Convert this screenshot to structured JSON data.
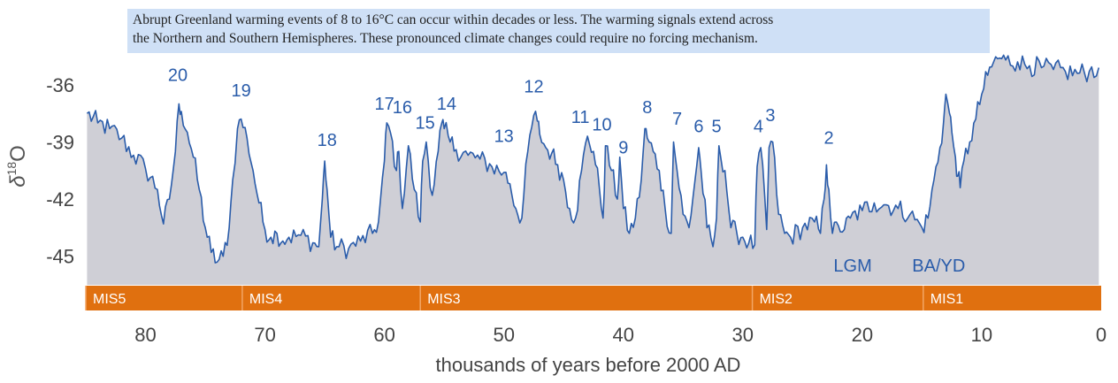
{
  "chart_data": {
    "type": "area",
    "title": "",
    "xlabel": "thousands of years before 2000 AD",
    "ylabel_base": "δ",
    "ylabel_super": "18",
    "ylabel_tail": "O",
    "xlim": [
      85,
      0
    ],
    "ylim": [
      -46.5,
      -33.5
    ],
    "xticks": [
      80,
      70,
      60,
      50,
      40,
      30,
      20,
      10,
      0
    ],
    "yticks": [
      -36,
      -39,
      -42,
      -45
    ],
    "grid": false,
    "colors": {
      "line": "#2a5caa",
      "fill": "#cfcfd6",
      "band": "#e0700f",
      "label": "#2a5caa",
      "band_text": "#ffffff",
      "annotation_bg": "#cfe0f6"
    },
    "annotation": [
      "Abrupt Greenland warming events of 8 to 16°C can occur within decades or less. The warming signals extend across",
      "the Northern and Southern Hemispheres. These pronounced climate changes could require no forcing mechanism."
    ],
    "series": [
      {
        "x": [
          84.9,
          84.0,
          83.0,
          82.0,
          81.0,
          80.0,
          79.0,
          78.5,
          78.0,
          77.5,
          77.2,
          77.0,
          76.5,
          76.0,
          75.5,
          75.0,
          74.5,
          74.0,
          73.5,
          73.0,
          72.7,
          72.3,
          72.0,
          71.5,
          71.0,
          70.5,
          70.0,
          69.5,
          69.0,
          68.5,
          68.0,
          67.0,
          66.0,
          65.5,
          65.2,
          65.0,
          64.8,
          64.5,
          64.0,
          63.0,
          62.0,
          61.0,
          60.5,
          60.0,
          59.8,
          59.5,
          59.0,
          58.8,
          58.5,
          58.0,
          57.5,
          57.0,
          56.8,
          56.5,
          56.0,
          55.5,
          55.2,
          55.0,
          54.5,
          54.0,
          53.0,
          52.0,
          51.0,
          50.0,
          49.5,
          49.0,
          48.5,
          48.0,
          47.5,
          47.2,
          47.0,
          46.5,
          46.0,
          45.5,
          45.0,
          44.5,
          44.0,
          43.5,
          43.0,
          42.5,
          42.0,
          41.7,
          41.5,
          41.0,
          40.5,
          40.3,
          40.0,
          39.5,
          39.0,
          38.5,
          38.2,
          38.0,
          37.5,
          37.0,
          36.5,
          36.0,
          35.8,
          35.5,
          35.0,
          34.5,
          34.0,
          33.7,
          33.5,
          33.0,
          32.5,
          32.2,
          32.0,
          31.5,
          31.0,
          30.5,
          30.0,
          29.5,
          29.0,
          28.8,
          28.5,
          28.0,
          27.8,
          27.5,
          27.0,
          26.5,
          26.0,
          25.0,
          24.0,
          23.5,
          23.2,
          23.0,
          22.8,
          22.5,
          22.0,
          21.5,
          21.0,
          20.0,
          19.0,
          18.0,
          17.0,
          16.0,
          15.0,
          14.5,
          14.0,
          13.5,
          13.2,
          13.0,
          12.7,
          12.5,
          12.2,
          12.0,
          11.8,
          11.5,
          11.0,
          10.5,
          10.0,
          9.5,
          9.0,
          8.5,
          8.0,
          7.0,
          6.0,
          5.0,
          4.0,
          3.0,
          2.0,
          1.0,
          0.2
        ],
        "y": [
          -37.5,
          -38.0,
          -38.3,
          -38.8,
          -39.7,
          -40.4,
          -41.5,
          -43.3,
          -42.0,
          -39.5,
          -37.0,
          -37.4,
          -38.5,
          -39.8,
          -41.5,
          -43.5,
          -44.8,
          -45.3,
          -45.0,
          -43.5,
          -41.0,
          -38.3,
          -37.8,
          -38.8,
          -40.5,
          -42.2,
          -43.6,
          -44.0,
          -43.8,
          -44.2,
          -44.0,
          -43.9,
          -44.3,
          -44.5,
          -42.0,
          -40.0,
          -41.5,
          -44.0,
          -44.5,
          -44.6,
          -44.2,
          -43.8,
          -43.2,
          -40.0,
          -38.0,
          -38.5,
          -40.5,
          -39.5,
          -42.5,
          -39.2,
          -41.5,
          -43.2,
          -40.0,
          -39.0,
          -41.8,
          -39.5,
          -38.0,
          -38.3,
          -39.0,
          -39.4,
          -39.7,
          -39.9,
          -40.3,
          -40.6,
          -41.2,
          -42.5,
          -43.0,
          -39.5,
          -37.6,
          -37.9,
          -38.6,
          -39.3,
          -39.6,
          -40.2,
          -41.0,
          -42.5,
          -43.0,
          -40.5,
          -38.7,
          -39.5,
          -41.5,
          -43.0,
          -39.2,
          -40.5,
          -42.0,
          -39.8,
          -42.5,
          -43.8,
          -43.0,
          -41.0,
          -38.3,
          -38.8,
          -39.5,
          -40.5,
          -42.5,
          -43.8,
          -39.0,
          -40.5,
          -42.8,
          -43.5,
          -41.0,
          -39.3,
          -40.5,
          -43.5,
          -44.5,
          -43.0,
          -39.2,
          -40.5,
          -43.5,
          -43.8,
          -44.0,
          -44.3,
          -44.4,
          -40.3,
          -39.3,
          -43.6,
          -39.3,
          -39.0,
          -42.8,
          -43.8,
          -44.0,
          -43.5,
          -43.2,
          -43.8,
          -42.0,
          -40.2,
          -41.5,
          -43.8,
          -43.4,
          -43.6,
          -43.0,
          -42.6,
          -42.2,
          -42.3,
          -42.5,
          -42.8,
          -43.5,
          -43.0,
          -41.0,
          -39.3,
          -38.0,
          -36.5,
          -37.5,
          -38.5,
          -39.8,
          -40.8,
          -41.4,
          -40.0,
          -39.0,
          -37.8,
          -36.5,
          -35.5,
          -34.8,
          -34.6,
          -34.7,
          -34.8,
          -35.0,
          -35.1,
          -35.2,
          -35.3,
          -35.4,
          -35.3,
          -35.1
        ]
      }
    ],
    "event_labels": [
      {
        "text": "20",
        "x": 77.3,
        "y": -35.8
      },
      {
        "text": "19",
        "x": 72.0,
        "y": -36.6
      },
      {
        "text": "18",
        "x": 64.8,
        "y": -39.2
      },
      {
        "text": "17",
        "x": 60.0,
        "y": -37.3
      },
      {
        "text": "16",
        "x": 58.5,
        "y": -37.5
      },
      {
        "text": "15",
        "x": 56.6,
        "y": -38.3
      },
      {
        "text": "14",
        "x": 54.8,
        "y": -37.3
      },
      {
        "text": "13",
        "x": 50.0,
        "y": -39.0
      },
      {
        "text": "12",
        "x": 47.5,
        "y": -36.4
      },
      {
        "text": "11",
        "x": 43.6,
        "y": -38.0
      },
      {
        "text": "10",
        "x": 41.8,
        "y": -38.4
      },
      {
        "text": "9",
        "x": 40.0,
        "y": -39.6
      },
      {
        "text": "8",
        "x": 38.0,
        "y": -37.5
      },
      {
        "text": "7",
        "x": 35.5,
        "y": -38.1
      },
      {
        "text": "6",
        "x": 33.7,
        "y": -38.5
      },
      {
        "text": "5",
        "x": 32.2,
        "y": -38.5
      },
      {
        "text": "4",
        "x": 28.7,
        "y": -38.5
      },
      {
        "text": "3",
        "x": 27.7,
        "y": -37.9
      },
      {
        "text": "2",
        "x": 22.8,
        "y": -39.1
      },
      {
        "text": "LGM",
        "x": 20.8,
        "y": -45.8
      },
      {
        "text": "BA/YD",
        "x": 13.6,
        "y": -45.8
      }
    ],
    "mis_bands": [
      {
        "label": "MIS5",
        "start": 85,
        "end": 71.9
      },
      {
        "label": "MIS4",
        "start": 71.9,
        "end": 57.0
      },
      {
        "label": "MIS3",
        "start": 57.0,
        "end": 29.2
      },
      {
        "label": "MIS2",
        "start": 29.2,
        "end": 14.9
      },
      {
        "label": "MIS1",
        "start": 14.9,
        "end": 0
      }
    ]
  }
}
